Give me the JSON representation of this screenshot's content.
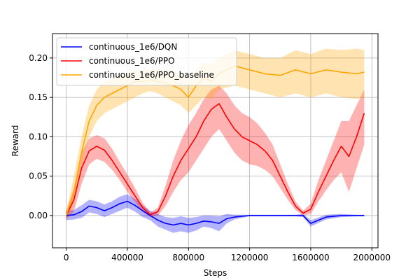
{
  "chart_data": {
    "type": "line",
    "xlabel": "Steps",
    "ylabel": "Reward",
    "xlim": [
      -90000,
      2040000
    ],
    "ylim": [
      -0.041,
      0.231
    ],
    "xticks": [
      0,
      400000,
      800000,
      1200000,
      1600000,
      2000000
    ],
    "xtick_labels": [
      "0",
      "400000",
      "800000",
      "1200000",
      "1600000",
      "2000000"
    ],
    "yticks": [
      0.0,
      0.05,
      0.1,
      0.15,
      0.2
    ],
    "ytick_labels": [
      "0.00",
      "0.05",
      "0.10",
      "0.15",
      "0.20"
    ],
    "grid": true,
    "legend_position": "top-left",
    "series": [
      {
        "name": "continuous_1e6/DQN",
        "color": "#0000ff",
        "x": [
          0,
          50000,
          100000,
          150000,
          200000,
          250000,
          300000,
          350000,
          400000,
          450000,
          500000,
          550000,
          600000,
          650000,
          700000,
          750000,
          800000,
          850000,
          900000,
          950000,
          1000000,
          1050000,
          1100000,
          1150000,
          1200000,
          1300000,
          1400000,
          1500000,
          1550000,
          1600000,
          1700000,
          1800000,
          1900000,
          1950000
        ],
        "y": [
          0.0,
          0.001,
          0.005,
          0.012,
          0.01,
          0.006,
          0.01,
          0.015,
          0.018,
          0.013,
          0.006,
          0.0,
          -0.006,
          -0.01,
          -0.012,
          -0.01,
          -0.012,
          -0.01,
          -0.007,
          -0.008,
          -0.01,
          -0.004,
          -0.002,
          -0.001,
          0.0,
          0.0,
          0.0,
          0.0,
          0.0,
          -0.01,
          -0.002,
          0.0,
          0.0,
          0.0
        ],
        "lower": [
          -0.006,
          -0.005,
          -0.003,
          0.004,
          0.002,
          -0.002,
          0.002,
          0.006,
          0.01,
          0.005,
          -0.002,
          -0.006,
          -0.014,
          -0.018,
          -0.022,
          -0.02,
          -0.022,
          -0.019,
          -0.014,
          -0.016,
          -0.02,
          -0.01,
          -0.005,
          -0.003,
          -0.001,
          -0.001,
          -0.001,
          -0.001,
          -0.002,
          -0.014,
          -0.005,
          -0.002,
          -0.001,
          -0.001
        ],
        "upper": [
          0.006,
          0.007,
          0.013,
          0.02,
          0.018,
          0.014,
          0.018,
          0.024,
          0.027,
          0.021,
          0.013,
          0.006,
          0.002,
          -0.002,
          -0.003,
          -0.001,
          -0.003,
          -0.002,
          0.0,
          0.0,
          -0.001,
          0.002,
          0.001,
          0.001,
          0.001,
          0.001,
          0.001,
          0.001,
          0.002,
          -0.006,
          0.001,
          0.002,
          0.001,
          0.001
        ]
      },
      {
        "name": "continuous_1e6/PPO",
        "color": "#ff0000",
        "x": [
          0,
          50000,
          100000,
          150000,
          200000,
          250000,
          300000,
          350000,
          400000,
          450000,
          500000,
          550000,
          600000,
          650000,
          700000,
          750000,
          800000,
          850000,
          900000,
          950000,
          1000000,
          1050000,
          1100000,
          1150000,
          1200000,
          1250000,
          1300000,
          1350000,
          1400000,
          1450000,
          1500000,
          1550000,
          1600000,
          1650000,
          1700000,
          1750000,
          1800000,
          1850000,
          1900000,
          1950000
        ],
        "y": [
          0.0,
          0.02,
          0.06,
          0.082,
          0.088,
          0.083,
          0.07,
          0.055,
          0.04,
          0.025,
          0.01,
          0.001,
          0.005,
          0.025,
          0.05,
          0.07,
          0.085,
          0.1,
          0.12,
          0.135,
          0.142,
          0.125,
          0.11,
          0.1,
          0.095,
          0.09,
          0.082,
          0.07,
          0.05,
          0.03,
          0.012,
          0.003,
          0.008,
          0.03,
          0.05,
          0.07,
          0.088,
          0.075,
          0.1,
          0.13
        ],
        "lower": [
          -0.005,
          0.005,
          0.04,
          0.065,
          0.072,
          0.068,
          0.058,
          0.045,
          0.03,
          0.017,
          0.005,
          -0.002,
          0.0,
          0.012,
          0.03,
          0.045,
          0.055,
          0.07,
          0.085,
          0.1,
          0.11,
          0.095,
          0.08,
          0.07,
          0.065,
          0.063,
          0.058,
          0.05,
          0.035,
          0.02,
          0.007,
          0.0,
          0.002,
          0.018,
          0.032,
          0.045,
          0.055,
          0.03,
          0.06,
          0.09
        ],
        "upper": [
          0.005,
          0.035,
          0.08,
          0.098,
          0.102,
          0.098,
          0.085,
          0.068,
          0.052,
          0.035,
          0.016,
          0.004,
          0.01,
          0.038,
          0.07,
          0.095,
          0.115,
          0.13,
          0.148,
          0.16,
          0.165,
          0.155,
          0.14,
          0.13,
          0.125,
          0.117,
          0.105,
          0.09,
          0.065,
          0.04,
          0.018,
          0.006,
          0.015,
          0.045,
          0.07,
          0.095,
          0.12,
          0.12,
          0.14,
          0.16
        ]
      },
      {
        "name": "continuous_1e6/PPO_baseline",
        "color": "#ffa500",
        "x": [
          0,
          50000,
          100000,
          150000,
          200000,
          250000,
          300000,
          350000,
          400000,
          450000,
          500000,
          550000,
          600000,
          650000,
          700000,
          750000,
          800000,
          850000,
          900000,
          950000,
          1000000,
          1100000,
          1200000,
          1300000,
          1400000,
          1500000,
          1600000,
          1700000,
          1800000,
          1900000,
          1950000
        ],
        "y": [
          0.0,
          0.03,
          0.08,
          0.12,
          0.14,
          0.15,
          0.155,
          0.16,
          0.165,
          0.17,
          0.17,
          0.172,
          0.17,
          0.168,
          0.165,
          0.16,
          0.15,
          0.165,
          0.175,
          0.17,
          0.18,
          0.19,
          0.185,
          0.18,
          0.178,
          0.185,
          0.18,
          0.185,
          0.182,
          0.18,
          0.182
        ],
        "lower": [
          -0.005,
          0.015,
          0.06,
          0.1,
          0.12,
          0.13,
          0.135,
          0.14,
          0.145,
          0.15,
          0.155,
          0.158,
          0.155,
          0.15,
          0.145,
          0.14,
          0.13,
          0.14,
          0.15,
          0.148,
          0.16,
          0.165,
          0.16,
          0.155,
          0.15,
          0.155,
          0.15,
          0.155,
          0.15,
          0.148,
          0.15
        ],
        "upper": [
          0.005,
          0.05,
          0.1,
          0.14,
          0.16,
          0.17,
          0.175,
          0.178,
          0.18,
          0.185,
          0.185,
          0.186,
          0.185,
          0.185,
          0.184,
          0.18,
          0.172,
          0.185,
          0.195,
          0.192,
          0.2,
          0.21,
          0.205,
          0.2,
          0.2,
          0.21,
          0.205,
          0.212,
          0.21,
          0.212,
          0.21
        ]
      }
    ]
  }
}
